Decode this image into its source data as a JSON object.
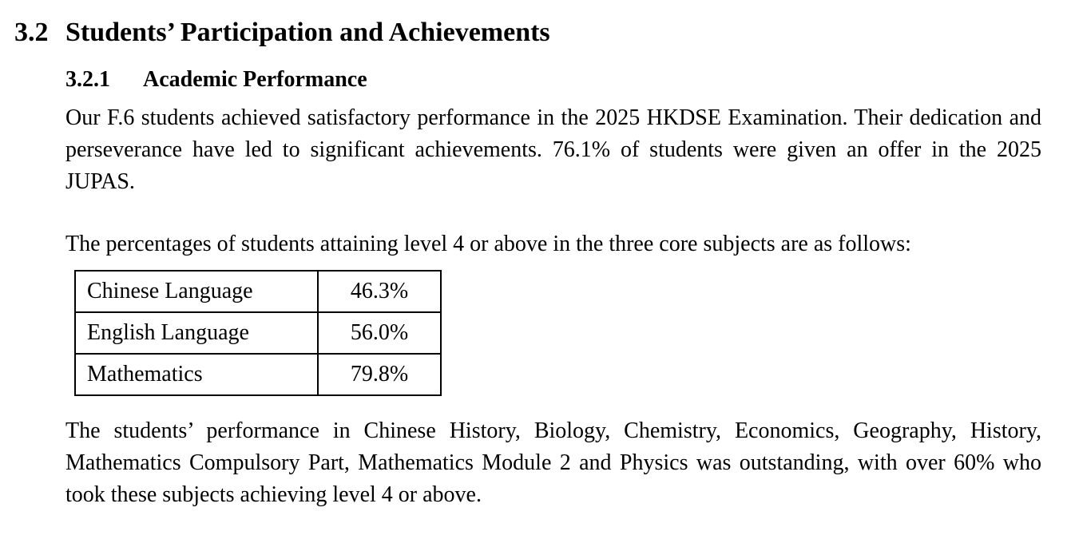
{
  "section": {
    "number": "3.2",
    "title": "Students’ Participation and Achievements"
  },
  "subsection": {
    "number": "3.2.1",
    "title": "Academic Performance"
  },
  "paragraph1": "Our F.6 students achieved satisfactory performance in the 2025 HKDSE Examination. Their dedication and perseverance have led to significant achievements. 76.1% of students were given an offer in the 2025 JUPAS.",
  "paragraph2": "The percentages of students attaining level 4 or above in the three core subjects are as follows:",
  "table": [
    {
      "subject": "Chinese Language",
      "value": "46.3%"
    },
    {
      "subject": "English Language",
      "value": "56.0%"
    },
    {
      "subject": "Mathematics",
      "value": "79.8%"
    }
  ],
  "paragraph3": "The students’ performance in Chinese History, Biology, Chemistry, Economics, Geography, History, Mathematics Compulsory Part, Mathematics Module 2 and Physics was outstanding, with over 60% who took these subjects achieving level 4 or above."
}
